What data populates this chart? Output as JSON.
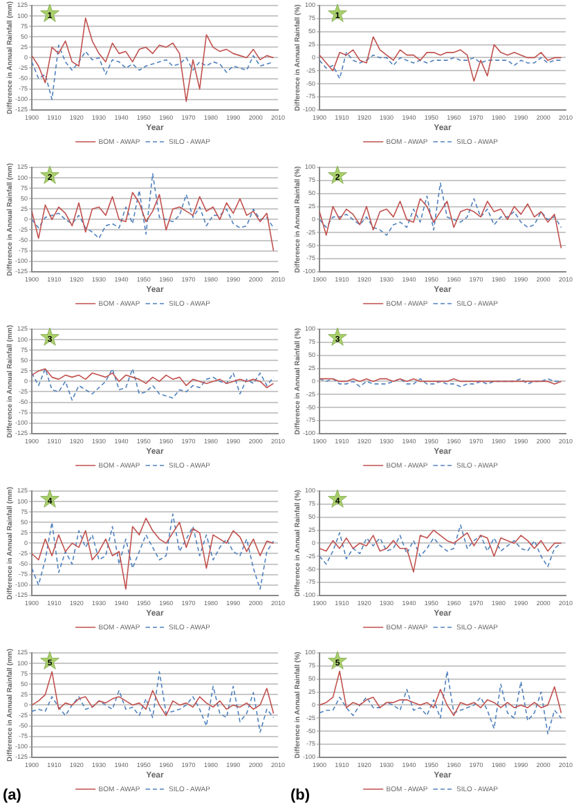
{
  "chart_data": [
    {
      "type": "line",
      "xlabel": "Year",
      "ylabel": "Difference in Annual Rainfall (mm)",
      "annotations": [
        "1"
      ],
      "xlim": [
        1900,
        2010
      ],
      "xticks": [
        1900,
        1910,
        1920,
        1930,
        1940,
        1950,
        1960,
        1970,
        1980,
        1990,
        2000,
        2010
      ],
      "ylim": [
        -125,
        125
      ],
      "yticks": [
        -125,
        -100,
        -75,
        -50,
        -25,
        0,
        25,
        50,
        75,
        100,
        125
      ],
      "grid": "y",
      "legend": "bottom",
      "marker": "none",
      "x": [
        1900,
        1903,
        1906,
        1909,
        1912,
        1915,
        1918,
        1921,
        1924,
        1927,
        1930,
        1933,
        1936,
        1939,
        1942,
        1945,
        1948,
        1951,
        1954,
        1957,
        1960,
        1963,
        1966,
        1969,
        1972,
        1975,
        1978,
        1981,
        1984,
        1987,
        1990,
        1993,
        1996,
        1999,
        2002,
        2005,
        2008
      ],
      "series": [
        {
          "name": "BOM - AWAP",
          "color": "#c0504d",
          "line_style": "solid",
          "values": [
            5,
            -20,
            -60,
            25,
            10,
            40,
            -10,
            -20,
            95,
            40,
            10,
            -10,
            35,
            10,
            15,
            -10,
            20,
            25,
            10,
            30,
            25,
            35,
            10,
            -105,
            -5,
            -75,
            55,
            25,
            15,
            20,
            10,
            5,
            0,
            20,
            -5,
            5,
            0
          ]
        },
        {
          "name": "SILO - AWAP",
          "color": "#4f81bd",
          "line_style": "dashed",
          "values": [
            -10,
            -50,
            -40,
            -100,
            30,
            -10,
            -30,
            -10,
            15,
            -5,
            0,
            -40,
            -5,
            -10,
            -25,
            -15,
            -30,
            -20,
            -15,
            -10,
            -5,
            -20,
            -15,
            0,
            -30,
            -10,
            -20,
            -10,
            -15,
            -35,
            -20,
            -25,
            -30,
            5,
            -20,
            -15,
            -10
          ]
        }
      ]
    },
    {
      "type": "line",
      "xlabel": "Year",
      "ylabel": "Difference in Annual Rainfall (%)",
      "annotations": [
        "1"
      ],
      "xlim": [
        1900,
        2010
      ],
      "xticks": [
        1900,
        1910,
        1920,
        1930,
        1940,
        1950,
        1960,
        1970,
        1980,
        1990,
        2000,
        2010
      ],
      "ylim": [
        -100,
        100
      ],
      "yticks": [
        -100,
        -75,
        -50,
        -25,
        0,
        25,
        50,
        75,
        100
      ],
      "grid": "y",
      "legend": "bottom",
      "marker": "none",
      "x": [
        1900,
        1903,
        1906,
        1909,
        1912,
        1915,
        1918,
        1921,
        1924,
        1927,
        1930,
        1933,
        1936,
        1939,
        1942,
        1945,
        1948,
        1951,
        1954,
        1957,
        1960,
        1963,
        1966,
        1969,
        1972,
        1975,
        1978,
        1981,
        1984,
        1987,
        1990,
        1993,
        1996,
        1999,
        2002,
        2005,
        2008
      ],
      "series": [
        {
          "name": "BOM - AWAP",
          "color": "#c0504d",
          "line_style": "solid",
          "values": [
            5,
            -10,
            -25,
            10,
            5,
            15,
            -5,
            -10,
            40,
            15,
            5,
            -5,
            15,
            5,
            5,
            -5,
            10,
            10,
            5,
            10,
            10,
            15,
            5,
            -45,
            -5,
            -35,
            25,
            10,
            5,
            10,
            5,
            0,
            0,
            10,
            -5,
            0,
            0
          ]
        },
        {
          "name": "SILO - AWAP",
          "color": "#4f81bd",
          "line_style": "dashed",
          "values": [
            -5,
            -20,
            -15,
            -40,
            10,
            -5,
            -10,
            -5,
            5,
            0,
            0,
            -15,
            0,
            -5,
            -10,
            -5,
            -10,
            -5,
            -5,
            -5,
            0,
            -5,
            -5,
            0,
            -10,
            -5,
            -5,
            -5,
            -5,
            -15,
            -5,
            -10,
            -10,
            0,
            -10,
            -5,
            -5
          ]
        }
      ]
    },
    {
      "type": "line",
      "xlabel": "Year",
      "ylabel": "Difference in Annual Rainfall (mm)",
      "annotations": [
        "2"
      ],
      "xlim": [
        1900,
        2010
      ],
      "xticks": [
        1900,
        1910,
        1920,
        1930,
        1940,
        1950,
        1960,
        1970,
        1980,
        1990,
        2000,
        2010
      ],
      "ylim": [
        -125,
        125
      ],
      "yticks": [
        -125,
        -100,
        -75,
        -50,
        -25,
        0,
        25,
        50,
        75,
        100,
        125
      ],
      "grid": "y",
      "legend": "bottom",
      "marker": "none",
      "x": [
        1900,
        1903,
        1906,
        1909,
        1912,
        1915,
        1918,
        1921,
        1924,
        1927,
        1930,
        1933,
        1936,
        1939,
        1942,
        1945,
        1948,
        1951,
        1954,
        1957,
        1960,
        1963,
        1966,
        1969,
        1972,
        1975,
        1978,
        1981,
        1984,
        1987,
        1990,
        1993,
        1996,
        1999,
        2002,
        2005,
        2008
      ],
      "series": [
        {
          "name": "BOM - AWAP",
          "color": "#c0504d",
          "line_style": "solid",
          "values": [
            20,
            -45,
            35,
            0,
            30,
            15,
            -15,
            40,
            -30,
            25,
            30,
            10,
            55,
            0,
            -5,
            65,
            40,
            -5,
            20,
            60,
            -25,
            25,
            30,
            20,
            10,
            55,
            20,
            30,
            0,
            40,
            15,
            50,
            10,
            20,
            -5,
            15,
            -75
          ]
        },
        {
          "name": "SILO - AWAP",
          "color": "#4f81bd",
          "line_style": "dashed",
          "values": [
            0,
            -20,
            5,
            10,
            15,
            0,
            -10,
            10,
            -20,
            -30,
            -45,
            -15,
            -10,
            -20,
            30,
            -10,
            70,
            -35,
            110,
            5,
            0,
            -5,
            10,
            60,
            5,
            30,
            -15,
            10,
            10,
            25,
            -10,
            -20,
            -15,
            25,
            0,
            5,
            -20
          ]
        }
      ]
    },
    {
      "type": "line",
      "xlabel": "Year",
      "ylabel": "Difference in Annual Rainfall (%)",
      "annotations": [
        "2"
      ],
      "xlim": [
        1900,
        2010
      ],
      "xticks": [
        1900,
        1910,
        1920,
        1930,
        1940,
        1950,
        1960,
        1970,
        1980,
        1990,
        2000,
        2010
      ],
      "ylim": [
        -100,
        100
      ],
      "yticks": [
        -100,
        -75,
        -50,
        -25,
        0,
        25,
        50,
        75,
        100
      ],
      "grid": "y",
      "legend": "bottom",
      "marker": "none",
      "x": [
        1900,
        1903,
        1906,
        1909,
        1912,
        1915,
        1918,
        1921,
        1924,
        1927,
        1930,
        1933,
        1936,
        1939,
        1942,
        1945,
        1948,
        1951,
        1954,
        1957,
        1960,
        1963,
        1966,
        1969,
        1972,
        1975,
        1978,
        1981,
        1984,
        1987,
        1990,
        1993,
        1996,
        1999,
        2002,
        2005,
        2008
      ],
      "series": [
        {
          "name": "BOM - AWAP",
          "color": "#c0504d",
          "line_style": "solid",
          "values": [
            15,
            -30,
            25,
            0,
            20,
            10,
            -10,
            25,
            -20,
            15,
            20,
            5,
            35,
            0,
            -5,
            40,
            25,
            -5,
            15,
            35,
            -15,
            15,
            20,
            15,
            5,
            35,
            15,
            20,
            0,
            25,
            10,
            30,
            5,
            15,
            -5,
            10,
            -55
          ]
        },
        {
          "name": "SILO - AWAP",
          "color": "#4f81bd",
          "line_style": "dashed",
          "values": [
            0,
            -15,
            5,
            5,
            10,
            0,
            -10,
            5,
            -15,
            -20,
            -30,
            -10,
            -5,
            -15,
            20,
            -5,
            45,
            -20,
            70,
            5,
            0,
            -5,
            5,
            40,
            5,
            20,
            -10,
            5,
            5,
            15,
            -5,
            -15,
            -10,
            15,
            0,
            5,
            -15
          ]
        }
      ]
    },
    {
      "type": "line",
      "xlabel": "Year",
      "ylabel": "Difference in Annual Rainfall (mm)",
      "annotations": [
        "3"
      ],
      "xlim": [
        1900,
        2010
      ],
      "xticks": [
        1900,
        1910,
        1920,
        1930,
        1940,
        1950,
        1960,
        1970,
        1980,
        1990,
        2000,
        2010
      ],
      "ylim": [
        -125,
        125
      ],
      "yticks": [
        -125,
        -100,
        -75,
        -50,
        -25,
        0,
        25,
        50,
        75,
        100,
        125
      ],
      "grid": "y",
      "legend": "bottom",
      "marker": "none",
      "x": [
        1900,
        1903,
        1906,
        1909,
        1912,
        1915,
        1918,
        1921,
        1924,
        1927,
        1930,
        1933,
        1936,
        1939,
        1942,
        1945,
        1948,
        1951,
        1954,
        1957,
        1960,
        1963,
        1966,
        1969,
        1972,
        1975,
        1978,
        1981,
        1984,
        1987,
        1990,
        1993,
        1996,
        1999,
        2002,
        2005,
        2008
      ],
      "series": [
        {
          "name": "BOM - AWAP",
          "color": "#c0504d",
          "line_style": "solid",
          "values": [
            15,
            25,
            30,
            10,
            5,
            15,
            10,
            15,
            5,
            20,
            15,
            10,
            20,
            0,
            15,
            10,
            5,
            -5,
            10,
            0,
            15,
            5,
            10,
            -10,
            5,
            0,
            -5,
            0,
            5,
            -5,
            0,
            5,
            0,
            5,
            0,
            -15,
            -5
          ]
        },
        {
          "name": "SILO - AWAP",
          "color": "#4f81bd",
          "line_style": "dashed",
          "values": [
            20,
            -10,
            30,
            -20,
            -25,
            0,
            -45,
            -10,
            -20,
            -30,
            -15,
            0,
            30,
            -20,
            -15,
            30,
            -30,
            -25,
            -10,
            -30,
            -35,
            -40,
            -20,
            -25,
            -10,
            -15,
            5,
            10,
            0,
            -5,
            20,
            -30,
            5,
            -5,
            20,
            -10,
            10
          ]
        }
      ]
    },
    {
      "type": "line",
      "xlabel": "Year",
      "ylabel": "Difference in Annual Rainfall (%)",
      "annotations": [
        "3"
      ],
      "xlim": [
        1900,
        2010
      ],
      "xticks": [
        1900,
        1910,
        1920,
        1930,
        1940,
        1950,
        1960,
        1970,
        1980,
        1990,
        2000,
        2010
      ],
      "ylim": [
        -100,
        100
      ],
      "yticks": [
        -100,
        -75,
        -50,
        -25,
        0,
        25,
        50,
        75,
        100
      ],
      "grid": "y",
      "legend": "bottom",
      "marker": "none",
      "x": [
        1900,
        1903,
        1906,
        1909,
        1912,
        1915,
        1918,
        1921,
        1924,
        1927,
        1930,
        1933,
        1936,
        1939,
        1942,
        1945,
        1948,
        1951,
        1954,
        1957,
        1960,
        1963,
        1966,
        1969,
        1972,
        1975,
        1978,
        1981,
        1984,
        1987,
        1990,
        1993,
        1996,
        1999,
        2002,
        2005,
        2008
      ],
      "series": [
        {
          "name": "BOM - AWAP",
          "color": "#c0504d",
          "line_style": "solid",
          "values": [
            5,
            5,
            5,
            0,
            0,
            5,
            0,
            5,
            0,
            5,
            5,
            0,
            5,
            0,
            5,
            0,
            0,
            0,
            0,
            0,
            5,
            0,
            0,
            0,
            0,
            0,
            0,
            0,
            0,
            0,
            0,
            0,
            0,
            0,
            0,
            -5,
            0
          ]
        },
        {
          "name": "SILO - AWAP",
          "color": "#4f81bd",
          "line_style": "dashed",
          "values": [
            5,
            0,
            5,
            -5,
            -5,
            0,
            -10,
            0,
            -5,
            -5,
            -5,
            0,
            5,
            -5,
            -5,
            5,
            -5,
            -5,
            0,
            -5,
            -5,
            -10,
            -5,
            -5,
            0,
            -5,
            0,
            0,
            0,
            0,
            5,
            -5,
            0,
            0,
            5,
            0,
            0
          ]
        }
      ]
    },
    {
      "type": "line",
      "xlabel": "Year",
      "ylabel": "Difference in Annual Rainfall (mm)",
      "annotations": [
        "4"
      ],
      "xlim": [
        1900,
        2010
      ],
      "xticks": [
        1900,
        1910,
        1920,
        1930,
        1940,
        1950,
        1960,
        1970,
        1980,
        1990,
        2000,
        2010
      ],
      "ylim": [
        -125,
        125
      ],
      "yticks": [
        -125,
        -100,
        -75,
        -50,
        -25,
        0,
        25,
        50,
        75,
        100,
        125
      ],
      "grid": "y",
      "legend": "bottom",
      "marker": "none",
      "x": [
        1900,
        1903,
        1906,
        1909,
        1912,
        1915,
        1918,
        1921,
        1924,
        1927,
        1930,
        1933,
        1936,
        1939,
        1942,
        1945,
        1948,
        1951,
        1954,
        1957,
        1960,
        1963,
        1966,
        1969,
        1972,
        1975,
        1978,
        1981,
        1984,
        1987,
        1990,
        1993,
        1996,
        1999,
        2002,
        2005,
        2008
      ],
      "series": [
        {
          "name": "BOM - AWAP",
          "color": "#c0504d",
          "line_style": "solid",
          "values": [
            -25,
            -40,
            10,
            -30,
            20,
            -20,
            0,
            -10,
            30,
            -40,
            -20,
            10,
            -30,
            -20,
            -110,
            40,
            20,
            60,
            30,
            10,
            0,
            25,
            50,
            -10,
            35,
            25,
            -60,
            20,
            10,
            0,
            30,
            15,
            -20,
            10,
            -30,
            5,
            0
          ]
        },
        {
          "name": "SILO - AWAP",
          "color": "#4f81bd",
          "line_style": "dashed",
          "values": [
            -60,
            -100,
            -40,
            50,
            -70,
            -20,
            -50,
            30,
            -10,
            20,
            -40,
            -30,
            40,
            -50,
            10,
            -60,
            -20,
            20,
            -10,
            -40,
            -30,
            70,
            -20,
            10,
            40,
            -30,
            20,
            -40,
            -10,
            10,
            -20,
            -30,
            10,
            -60,
            -110,
            -20,
            5
          ]
        }
      ]
    },
    {
      "type": "line",
      "xlabel": "Year",
      "ylabel": "Difference in Annual Rainfall (%)",
      "annotations": [
        "4"
      ],
      "xlim": [
        1900,
        2010
      ],
      "xticks": [
        1900,
        1910,
        1920,
        1930,
        1940,
        1950,
        1960,
        1970,
        1980,
        1990,
        2000,
        2010
      ],
      "ylim": [
        -100,
        100
      ],
      "yticks": [
        -100,
        -75,
        -50,
        -25,
        0,
        25,
        50,
        75,
        100
      ],
      "grid": "y",
      "legend": "bottom",
      "marker": "none",
      "x": [
        1900,
        1903,
        1906,
        1909,
        1912,
        1915,
        1918,
        1921,
        1924,
        1927,
        1930,
        1933,
        1936,
        1939,
        1942,
        1945,
        1948,
        1951,
        1954,
        1957,
        1960,
        1963,
        1966,
        1969,
        1972,
        1975,
        1978,
        1981,
        1984,
        1987,
        1990,
        1993,
        1996,
        1999,
        2002,
        2005,
        2008
      ],
      "series": [
        {
          "name": "BOM - AWAP",
          "color": "#c0504d",
          "line_style": "solid",
          "values": [
            -10,
            -15,
            5,
            -10,
            10,
            -10,
            0,
            -5,
            15,
            -15,
            -10,
            5,
            -10,
            -10,
            -55,
            15,
            10,
            25,
            15,
            5,
            0,
            10,
            20,
            -5,
            15,
            10,
            -25,
            10,
            5,
            0,
            15,
            5,
            -10,
            5,
            -15,
            0,
            0
          ]
        },
        {
          "name": "SILO - AWAP",
          "color": "#4f81bd",
          "line_style": "dashed",
          "values": [
            -25,
            -40,
            -15,
            20,
            -30,
            -10,
            -20,
            10,
            -5,
            10,
            -15,
            -10,
            15,
            -20,
            5,
            -25,
            -10,
            10,
            -5,
            -15,
            -10,
            35,
            -10,
            5,
            15,
            -15,
            10,
            -15,
            -5,
            5,
            -10,
            -15,
            5,
            -25,
            -45,
            -10,
            0
          ]
        }
      ]
    },
    {
      "type": "line",
      "xlabel": "Year",
      "ylabel": "Difference in Annual Rainfall (mm)",
      "annotations": [
        "5",
        "(a)"
      ],
      "xlim": [
        1900,
        2010
      ],
      "xticks": [
        1900,
        1910,
        1920,
        1930,
        1940,
        1950,
        1960,
        1970,
        1980,
        1990,
        2000,
        2010
      ],
      "ylim": [
        -125,
        125
      ],
      "yticks": [
        -125,
        -100,
        -75,
        -50,
        -25,
        0,
        25,
        50,
        75,
        100,
        125
      ],
      "grid": "y",
      "legend": "bottom",
      "marker": "none",
      "x": [
        1900,
        1903,
        1906,
        1909,
        1912,
        1915,
        1918,
        1921,
        1924,
        1927,
        1930,
        1933,
        1936,
        1939,
        1942,
        1945,
        1948,
        1951,
        1954,
        1957,
        1960,
        1963,
        1966,
        1969,
        1972,
        1975,
        1978,
        1981,
        1984,
        1987,
        1990,
        1993,
        1996,
        1999,
        2002,
        2005,
        2008
      ],
      "series": [
        {
          "name": "BOM - AWAP",
          "color": "#c0504d",
          "line_style": "solid",
          "values": [
            0,
            10,
            25,
            80,
            -10,
            5,
            0,
            15,
            20,
            -5,
            10,
            5,
            15,
            20,
            10,
            0,
            5,
            -10,
            35,
            0,
            -25,
            10,
            0,
            5,
            -5,
            20,
            5,
            -5,
            10,
            -10,
            0,
            -5,
            5,
            -10,
            0,
            40,
            -20
          ]
        },
        {
          "name": "SILO - AWAP",
          "color": "#4f81bd",
          "line_style": "dashed",
          "values": [
            -15,
            -10,
            -15,
            20,
            -5,
            -25,
            0,
            20,
            -10,
            -5,
            10,
            0,
            -10,
            35,
            -10,
            -5,
            -25,
            15,
            -30,
            80,
            -20,
            -15,
            -10,
            0,
            20,
            -10,
            -50,
            45,
            -20,
            -30,
            45,
            -40,
            -20,
            30,
            -65,
            -10,
            -30
          ]
        }
      ]
    },
    {
      "type": "line",
      "xlabel": "Year",
      "ylabel": "Difference in Annual Rainfall (%)",
      "annotations": [
        "5",
        "(b)"
      ],
      "xlim": [
        1900,
        2010
      ],
      "xticks": [
        1900,
        1910,
        1920,
        1930,
        1940,
        1950,
        1960,
        1970,
        1980,
        1990,
        2000,
        2010
      ],
      "ylim": [
        -100,
        100
      ],
      "yticks": [
        -100,
        -75,
        -50,
        -25,
        0,
        25,
        50,
        75,
        100
      ],
      "grid": "y",
      "legend": "bottom",
      "marker": "none",
      "x": [
        1900,
        1903,
        1906,
        1909,
        1912,
        1915,
        1918,
        1921,
        1924,
        1927,
        1930,
        1933,
        1936,
        1939,
        1942,
        1945,
        1948,
        1951,
        1954,
        1957,
        1960,
        1963,
        1966,
        1969,
        1972,
        1975,
        1978,
        1981,
        1984,
        1987,
        1990,
        1993,
        1996,
        1999,
        2002,
        2005,
        2008
      ],
      "series": [
        {
          "name": "BOM - AWAP",
          "color": "#c0504d",
          "line_style": "solid",
          "values": [
            0,
            5,
            15,
            65,
            -5,
            5,
            0,
            10,
            15,
            -5,
            5,
            5,
            10,
            10,
            5,
            0,
            5,
            -5,
            30,
            0,
            -20,
            5,
            0,
            5,
            -5,
            10,
            5,
            -5,
            5,
            -5,
            0,
            -5,
            5,
            -5,
            0,
            35,
            -15
          ]
        },
        {
          "name": "SILO - AWAP",
          "color": "#4f81bd",
          "line_style": "dashed",
          "values": [
            -15,
            -10,
            -10,
            15,
            -5,
            -20,
            0,
            15,
            -5,
            -5,
            5,
            0,
            -10,
            30,
            -10,
            -5,
            -20,
            10,
            -25,
            65,
            -15,
            -10,
            -5,
            0,
            15,
            -10,
            -45,
            40,
            -15,
            -25,
            45,
            -30,
            -15,
            25,
            -55,
            -10,
            -25
          ]
        }
      ]
    }
  ]
}
